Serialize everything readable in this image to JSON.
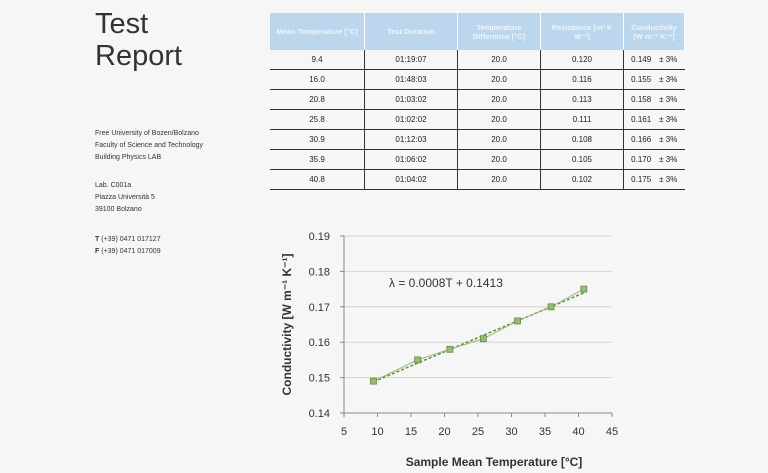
{
  "report": {
    "title_line1": "Test",
    "title_line2": "Report"
  },
  "affiliation": {
    "lines": [
      "Free University of Bozen/Bolzano",
      "Faculty of Science and Technology",
      "Building Physics LAB"
    ]
  },
  "address": {
    "lines": [
      "Lab. C001a",
      "Piazza Università 5",
      "39100 Bolzano"
    ]
  },
  "contact": {
    "phone_label": "T",
    "phone": "(+39) 0471 017127",
    "fax_label": "F",
    "fax": "(+39) 0471 017009"
  },
  "table": {
    "headers": [
      "Mean Temperature [°C]",
      "Test Duration",
      "Temperature Difference [°C]",
      "Resistance [m² K W⁻¹]",
      "Conductivity [W m⁻¹ K⁻¹]"
    ],
    "rows": [
      {
        "mean_temp": "9.4",
        "duration": "01:19:07",
        "temp_diff": "20.0",
        "resistance": "0.120",
        "conductivity": "0.149",
        "uncertainty": "± 3%"
      },
      {
        "mean_temp": "16.0",
        "duration": "01:48:03",
        "temp_diff": "20.0",
        "resistance": "0.116",
        "conductivity": "0.155",
        "uncertainty": "± 3%"
      },
      {
        "mean_temp": "20.8",
        "duration": "01:03:02",
        "temp_diff": "20.0",
        "resistance": "0.113",
        "conductivity": "0.158",
        "uncertainty": "± 3%"
      },
      {
        "mean_temp": "25.8",
        "duration": "01:02:02",
        "temp_diff": "20.0",
        "resistance": "0.111",
        "conductivity": "0.161",
        "uncertainty": "± 3%"
      },
      {
        "mean_temp": "30.9",
        "duration": "01:12:03",
        "temp_diff": "20.0",
        "resistance": "0.108",
        "conductivity": "0.166",
        "uncertainty": "± 3%"
      },
      {
        "mean_temp": "35.9",
        "duration": "01:06:02",
        "temp_diff": "20.0",
        "resistance": "0.105",
        "conductivity": "0.170",
        "uncertainty": "± 3%"
      },
      {
        "mean_temp": "40.8",
        "duration": "01:04:02",
        "temp_diff": "20.0",
        "resistance": "0.102",
        "conductivity": "0.175",
        "uncertainty": "± 3%"
      }
    ]
  },
  "chart_data": {
    "type": "scatter",
    "title": "",
    "xlabel": "Sample Mean Temperature [°C]",
    "ylabel": "Conductivity [W m⁻¹ K⁻¹]",
    "xlim": [
      5,
      45
    ],
    "ylim": [
      0.14,
      0.19
    ],
    "xticks": [
      "5",
      "10",
      "15",
      "20",
      "25",
      "30",
      "35",
      "40",
      "45"
    ],
    "yticks": [
      "0.14",
      "0.15",
      "0.16",
      "0.17",
      "0.18",
      "0.19"
    ],
    "grid": true,
    "series": [
      {
        "x": [
          9.4,
          16.0,
          20.8,
          25.8,
          30.9,
          35.9,
          40.8
        ],
        "y": [
          0.149,
          0.155,
          0.158,
          0.161,
          0.166,
          0.17,
          0.175
        ],
        "marker_color": "#9ab87a",
        "line_color": "#5f8f3a"
      }
    ],
    "trendline": {
      "equation": "λ = 0.0008T + 0.1413",
      "slope": 0.0008,
      "intercept": 0.1413
    }
  }
}
